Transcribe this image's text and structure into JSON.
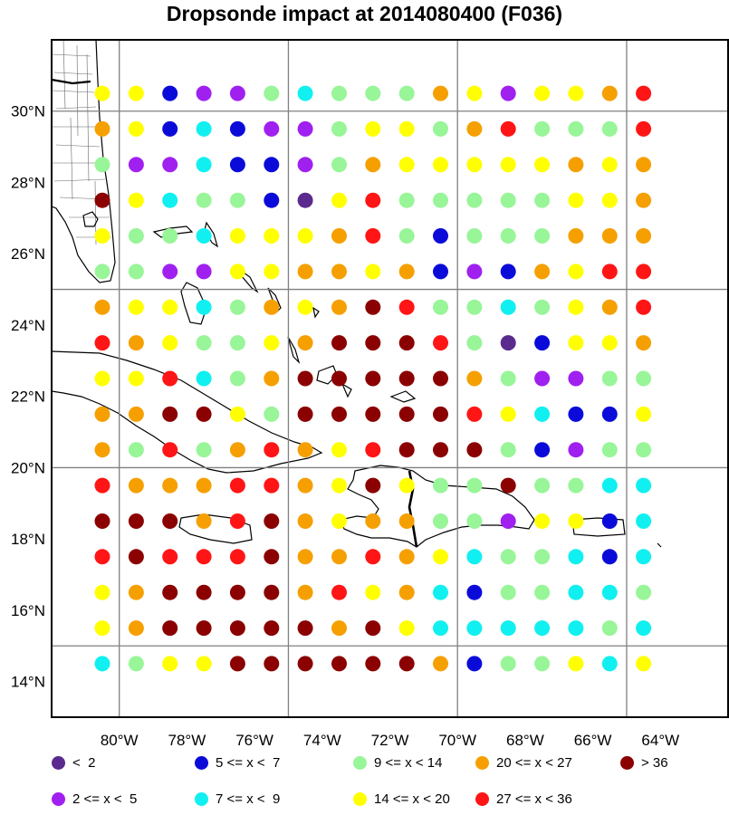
{
  "title": "Dropsonde impact at 2014080400 (F036)",
  "map": {
    "lon_range": [
      -82,
      -62
    ],
    "lat_range": [
      13,
      32
    ],
    "grid_lons": [
      -80,
      -75,
      -70,
      -65
    ],
    "grid_lats": [
      15,
      20,
      25,
      30
    ],
    "x_tick_labels": [
      {
        "lon": -80,
        "label": "80°W"
      },
      {
        "lon": -78,
        "label": "78°W"
      },
      {
        "lon": -76,
        "label": "76°W"
      },
      {
        "lon": -74,
        "label": "74°W"
      },
      {
        "lon": -72,
        "label": "72°W"
      },
      {
        "lon": -70,
        "label": "70°W"
      },
      {
        "lon": -68,
        "label": "68°W"
      },
      {
        "lon": -66,
        "label": "66°W"
      },
      {
        "lon": -64,
        "label": "64°W"
      }
    ],
    "y_tick_labels": [
      {
        "lat": 30,
        "label": "30°N"
      },
      {
        "lat": 28,
        "label": "28°N"
      },
      {
        "lat": 26,
        "label": "26°N"
      },
      {
        "lat": 24,
        "label": "24°N"
      },
      {
        "lat": 22,
        "label": "22°N"
      },
      {
        "lat": 20,
        "label": "20°N"
      },
      {
        "lat": 18,
        "label": "18°N"
      },
      {
        "lat": 16,
        "label": "16°N"
      },
      {
        "lat": 14,
        "label": "14°N"
      }
    ]
  },
  "colors": {
    "a": "#5b2a8e",
    "b": "#a020f0",
    "c": "#0b0bd9",
    "d": "#11f0f0",
    "e": "#98f598",
    "f": "#ffff00",
    "g": "#f5a000",
    "h": "#ff1515",
    "i": "#8b0000"
  },
  "legend": [
    {
      "code": "a",
      "label": "<  2"
    },
    {
      "code": "c",
      "label": "5 <= x <  7"
    },
    {
      "code": "e",
      "label": "9 <= x < 14"
    },
    {
      "code": "g",
      "label": "20 <= x < 27"
    },
    {
      "code": "i",
      "label": "> 36"
    },
    {
      "code": "b",
      "label": "2 <= x <  5"
    },
    {
      "code": "d",
      "label": "7 <= x <  9"
    },
    {
      "code": "f",
      "label": "14 <= x < 20"
    },
    {
      "code": "h",
      "label": "27 <= x < 36"
    }
  ],
  "chart_data": {
    "type": "scatter",
    "x_lons": [
      -80.5,
      -79.5,
      -78.5,
      -77.5,
      -76.5,
      -75.5,
      -74.5,
      -73.5,
      -72.5,
      -71.5,
      -70.5,
      -69.5,
      -68.5,
      -67.5,
      -66.5,
      -65.5,
      -64.5
    ],
    "rows": [
      {
        "lat": 30.5,
        "codes": "ffcbbedeeegfbffgh"
      },
      {
        "lat": 29.5,
        "codes": "gfcdcbbeffegheeeh"
      },
      {
        "lat": 28.5,
        "codes": "ebbdccbegfffffgfg"
      },
      {
        "lat": 27.5,
        "codes": "ifdeecafheeeeeffg"
      },
      {
        "lat": 26.5,
        "codes": "feedfffgheceeeggg"
      },
      {
        "lat": 25.5,
        "codes": "eebbffggfgcbcgfhh"
      },
      {
        "lat": 24.5,
        "codes": "gffdegfgiheedefgh"
      },
      {
        "lat": 23.5,
        "codes": "hgfeefgiiiheacffg"
      },
      {
        "lat": 22.5,
        "codes": "ffhdegiiiiigebbee"
      },
      {
        "lat": 21.5,
        "codes": "ggiifeiiiiihfdccf"
      },
      {
        "lat": 20.5,
        "codes": "geheghgfhiiiecbee"
      },
      {
        "lat": 19.5,
        "codes": "hggghhgfifeeieedd"
      },
      {
        "lat": 18.5,
        "codes": "iiighigfggeebffcd"
      },
      {
        "lat": 17.5,
        "codes": "hihhhigghgfdeedcd"
      },
      {
        "lat": 16.5,
        "codes": "fgiiiighfgdceedde"
      },
      {
        "lat": 15.5,
        "codes": "fgiiiiigifddddded"
      },
      {
        "lat": 14.5,
        "codes": "deffiiiiiigceefdf"
      }
    ]
  }
}
